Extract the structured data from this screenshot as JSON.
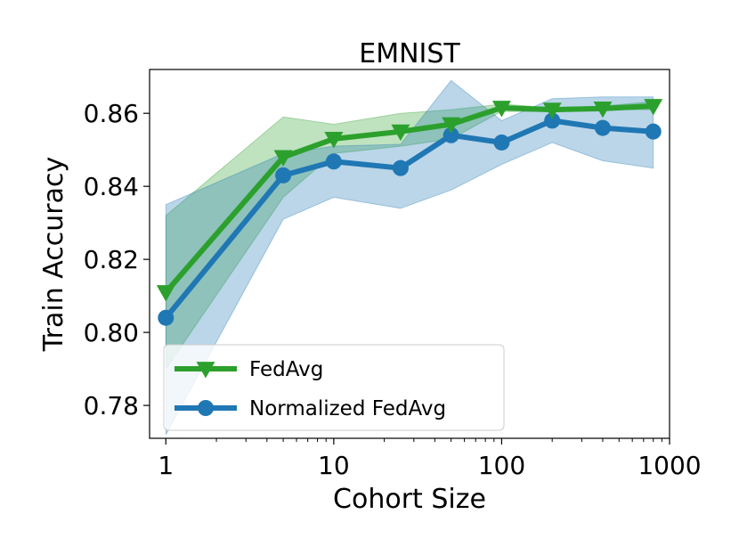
{
  "chart_data": {
    "type": "line",
    "title": "EMNIST",
    "xlabel": "Cohort Size",
    "ylabel": "Train Accuracy",
    "x_scale": "log",
    "xlim": [
      0.8,
      1000
    ],
    "ylim": [
      0.771,
      0.872
    ],
    "x_ticks": [
      1,
      10,
      100,
      1000
    ],
    "x_tick_labels": [
      "1",
      "10",
      "100",
      "1000"
    ],
    "y_ticks": [
      0.78,
      0.8,
      0.82,
      0.84,
      0.86
    ],
    "y_tick_labels": [
      "0.78",
      "0.80",
      "0.82",
      "0.84",
      "0.86"
    ],
    "grid": false,
    "legend_position": "bottom-left",
    "x": [
      1,
      5,
      10,
      25,
      50,
      100,
      200,
      400,
      800
    ],
    "series": [
      {
        "name": "FedAvg",
        "color": "#2ca02c",
        "marker": "triangle-down",
        "values": [
          0.811,
          0.848,
          0.853,
          0.855,
          0.857,
          0.8615,
          0.861,
          0.8613,
          0.862
        ],
        "band_upper": [
          0.832,
          0.859,
          0.857,
          0.86,
          0.861,
          0.8625,
          0.8615,
          0.862,
          0.8632
        ],
        "band_lower": [
          0.79,
          0.837,
          0.849,
          0.851,
          0.853,
          0.8605,
          0.8605,
          0.861,
          0.861
        ]
      },
      {
        "name": "Normalized FedAvg",
        "color": "#1f77b4",
        "marker": "circle",
        "values": [
          0.804,
          0.843,
          0.8468,
          0.845,
          0.854,
          0.852,
          0.858,
          0.856,
          0.855
        ],
        "band_upper": [
          0.835,
          0.849,
          0.851,
          0.8515,
          0.869,
          0.858,
          0.864,
          0.8645,
          0.8645
        ],
        "band_lower": [
          0.772,
          0.831,
          0.837,
          0.834,
          0.839,
          0.846,
          0.852,
          0.847,
          0.845
        ]
      }
    ]
  }
}
